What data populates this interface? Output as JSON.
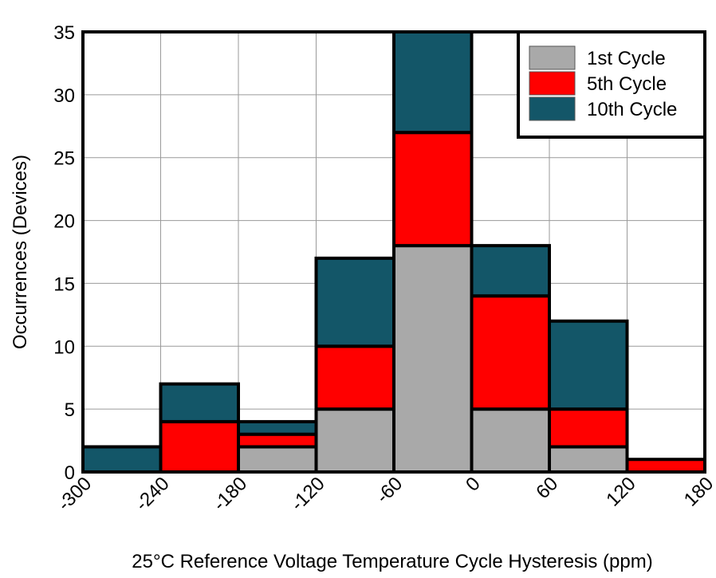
{
  "chart_data": {
    "type": "bar",
    "stacked": true,
    "title": "",
    "xlabel": "25°C Reference Voltage Temperature Cycle Hysteresis (ppm)",
    "ylabel": "Occurrences (Devices)",
    "xlim": [
      -300,
      180
    ],
    "ylim": [
      0,
      35
    ],
    "x_ticks": [
      "-300",
      "-240",
      "-180",
      "-120",
      "-60",
      "0",
      "60",
      "120",
      "180"
    ],
    "y_ticks": [
      "0",
      "5",
      "10",
      "15",
      "20",
      "25",
      "30",
      "35"
    ],
    "grid": true,
    "legend_position": "top-right",
    "bins": [
      [
        -300,
        -240
      ],
      [
        -240,
        -180
      ],
      [
        -180,
        -120
      ],
      [
        -120,
        -60
      ],
      [
        -60,
        0
      ],
      [
        0,
        60
      ],
      [
        60,
        120
      ],
      [
        120,
        180
      ]
    ],
    "series": [
      {
        "name": "1st Cycle",
        "color": "#a9a9a9",
        "values": [
          0,
          0,
          2,
          5,
          18,
          5,
          2,
          0
        ]
      },
      {
        "name": "5th Cycle",
        "color": "#ff0000",
        "values": [
          0,
          4,
          1,
          5,
          9,
          9,
          3,
          1
        ]
      },
      {
        "name": "10th Cycle",
        "color": "#135668",
        "values": [
          2,
          3,
          1,
          7,
          8,
          4,
          7,
          0
        ]
      }
    ]
  }
}
